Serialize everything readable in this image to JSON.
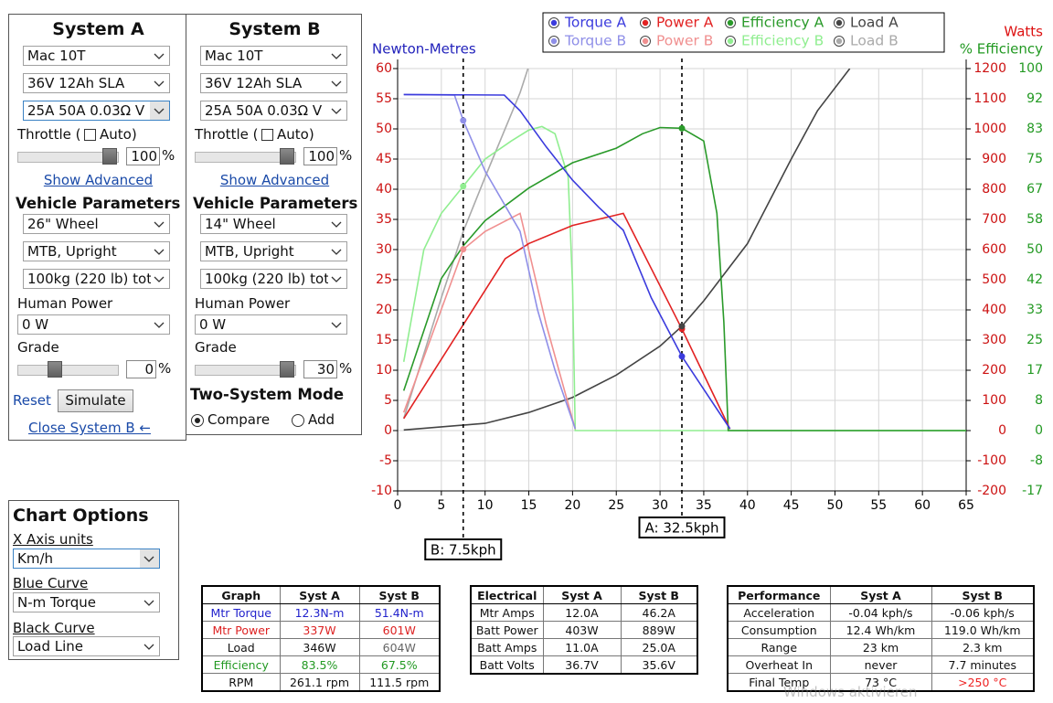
{
  "systems": [
    {
      "title": "System A",
      "motor": "Mac 10T",
      "battery": "36V 12Ah SLA",
      "controller": "25A 50A 0.03Ω V",
      "throttle_label": "Throttle (",
      "auto_label": "Auto)",
      "throttle_value": "100",
      "percent": "%",
      "show_advanced": "Show Advanced",
      "vehicle_title": "Vehicle Parameters",
      "wheel": "26\"  Wheel",
      "frame": "MTB, Upright",
      "mass": "100kg (220 lb) tot",
      "human_label": "Human Power",
      "human_value": "0 W",
      "grade_label": "Grade",
      "grade_value": "0",
      "reset": "Reset",
      "simulate": "Simulate",
      "close": "Close System B ←"
    },
    {
      "title": "System B",
      "motor": "Mac 10T",
      "battery": "36V 12Ah SLA",
      "controller": "25A 50A 0.03Ω V",
      "throttle_label": "Throttle (",
      "auto_label": "Auto)",
      "throttle_value": "100",
      "percent": "%",
      "show_advanced": "Show Advanced",
      "vehicle_title": "Vehicle Parameters",
      "wheel": "14\"  Wheel",
      "frame": "MTB, Upright",
      "mass": "100kg (220 lb) tot",
      "human_label": "Human Power",
      "human_value": "0 W",
      "grade_label": "Grade",
      "grade_value": "30",
      "mode_title": "Two-System Mode",
      "compare": "Compare",
      "add": "Add"
    }
  ],
  "chart_options": {
    "title": "Chart Options",
    "x_axis_label": "X Axis units",
    "x_axis_value": "Km/h",
    "blue_label": "Blue Curve",
    "blue_value": "N-m Torque",
    "black_label": "Black Curve",
    "black_value": "Load Line"
  },
  "chart": {
    "type": "line",
    "ylabel": "Newton-Metres",
    "y2label": "Watts",
    "y3label": "% Efficiency",
    "xlim": [
      0,
      65
    ],
    "xticks": [
      0,
      5,
      10,
      15,
      20,
      25,
      30,
      35,
      40,
      45,
      50,
      55,
      60,
      65
    ],
    "ylim": [
      -10,
      60
    ],
    "yticks": [
      -10,
      -5,
      0,
      5,
      10,
      15,
      20,
      25,
      30,
      35,
      40,
      45,
      50,
      55,
      60
    ],
    "y2lim": [
      -200,
      1200
    ],
    "y2ticks": [
      -200,
      -100,
      0,
      100,
      200,
      300,
      400,
      500,
      600,
      700,
      800,
      900,
      1000,
      1100,
      1200
    ],
    "y3lim": [
      -16.67,
      100
    ],
    "y3ticks": [
      {
        "value": -16.67,
        "label": "-17"
      },
      {
        "value": -8.33,
        "label": "-8"
      },
      0,
      {
        "value": 8.33,
        "label": "8"
      },
      {
        "value": 16.67,
        "label": "17"
      },
      25,
      {
        "value": 33.33,
        "label": "33"
      },
      {
        "value": 41.67,
        "label": "42"
      },
      50,
      {
        "value": 58.33,
        "label": "58"
      },
      {
        "value": 66.67,
        "label": "67"
      },
      75,
      {
        "value": 83.33,
        "label": "83"
      },
      {
        "value": 91.67,
        "label": "92"
      },
      100
    ],
    "grid": true,
    "series": [
      {
        "name": "Torque A",
        "color": "#3b3bdd",
        "axis": "y",
        "x": [
          0.7,
          12.2,
          14,
          17,
          20,
          23,
          25.8,
          29,
          32.5,
          38
        ],
        "values": [
          55.7,
          55.6,
          53,
          47,
          41.5,
          37,
          33.2,
          22,
          12.3,
          0.3
        ],
        "marker": {
          "x": 32.5,
          "y": 12.3
        }
      },
      {
        "name": "Power A",
        "color": "#e22222",
        "axis": "y2",
        "x": [
          0.7,
          12.3,
          15,
          20,
          25.8,
          32.5,
          38
        ],
        "values": [
          40,
          570,
          620,
          680,
          720,
          337,
          5
        ],
        "marker": {
          "x": 32.5,
          "y": 337
        }
      },
      {
        "name": "Efficiency A",
        "color": "#2a9a2a",
        "axis": "y3",
        "x": [
          0.7,
          5,
          7.5,
          10,
          15,
          20,
          25,
          28,
          30,
          32.5,
          35,
          36.5,
          37.3,
          37.8,
          65
        ],
        "values": [
          11,
          42,
          51,
          58,
          67,
          74,
          78,
          82,
          83.7,
          83.5,
          80,
          60,
          30,
          0,
          0
        ],
        "marker": {
          "x": 32.5,
          "y": 83.5
        }
      },
      {
        "name": "Load A",
        "color": "#444444",
        "axis": "y",
        "x": [
          0.7,
          10,
          15,
          20,
          25,
          30,
          32.5,
          35,
          40,
          45,
          48,
          51.7
        ],
        "values": [
          0.1,
          1.2,
          3,
          5.5,
          9.2,
          14,
          17.3,
          21.5,
          31,
          45,
          53,
          60
        ],
        "marker": {
          "x": 32.5,
          "y": 17.3
        }
      },
      {
        "name": "Torque B",
        "color": "#8f8fe8",
        "axis": "y",
        "x": [
          0.7,
          6.5,
          7.5,
          10,
          14,
          16,
          18,
          20.3
        ],
        "values": [
          55.7,
          55.6,
          51.4,
          43,
          33,
          20,
          10,
          0.3
        ],
        "marker": {
          "x": 7.5,
          "y": 51.4
        }
      },
      {
        "name": "Power B",
        "color": "#f09090",
        "axis": "y2",
        "x": [
          0.7,
          7.5,
          10,
          14,
          17,
          20.3
        ],
        "values": [
          60,
          601,
          660,
          720,
          350,
          5
        ],
        "marker": {
          "x": 7.5,
          "y": 601
        }
      },
      {
        "name": "Efficiency B",
        "color": "#90ee90",
        "axis": "y3",
        "x": [
          0.7,
          3,
          5,
          7.5,
          10,
          13,
          15,
          16.5,
          18,
          19.5,
          20,
          20.3,
          65
        ],
        "values": [
          19,
          50,
          60,
          67.5,
          75,
          80,
          83,
          84,
          82,
          70,
          40,
          0,
          0
        ],
        "marker": {
          "x": 7.5,
          "y": 67.5
        }
      },
      {
        "name": "Load B",
        "color": "#aaaaaa",
        "axis": "y",
        "x": [
          0.7,
          5,
          7.5,
          10,
          14,
          14.9
        ],
        "values": [
          2,
          22,
          33,
          42,
          56,
          60
        ]
      }
    ],
    "cursors": [
      {
        "label": "B: 7.5kph",
        "x": 7.5
      },
      {
        "label": "A: 32.5kph",
        "x": 32.5
      }
    ]
  },
  "tables": [
    {
      "header": [
        "Graph",
        "Syst A",
        "Syst B"
      ],
      "rows": [
        [
          {
            "text": "Mtr Torque",
            "color": "#2222cc"
          },
          {
            "text": "12.3N-m",
            "color": "#2222cc"
          },
          {
            "text": "51.4N-m",
            "color": "#2222cc"
          }
        ],
        [
          {
            "text": "Mtr Power",
            "color": "#dd2222"
          },
          {
            "text": "337W",
            "color": "#dd2222"
          },
          {
            "text": "601W",
            "color": "#dd2222"
          }
        ],
        [
          "Load",
          "346W",
          {
            "text": "604W",
            "color": "#666666"
          }
        ],
        [
          {
            "text": "Efficiency",
            "color": "#229922"
          },
          {
            "text": "83.5%",
            "color": "#229922"
          },
          {
            "text": "67.5%",
            "color": "#229922"
          }
        ],
        [
          "RPM",
          "261.1 rpm",
          "111.5 rpm"
        ]
      ]
    },
    {
      "header": [
        "Electrical",
        "Syst A",
        "Syst B"
      ],
      "rows": [
        [
          "Mtr Amps",
          "12.0A",
          "46.2A"
        ],
        [
          "Batt Power",
          "403W",
          "889W"
        ],
        [
          "Batt Amps",
          "11.0A",
          "25.0A"
        ],
        [
          "Batt Volts",
          "36.7V",
          "35.6V"
        ]
      ]
    },
    {
      "header": [
        "Performance",
        "Syst A",
        "Syst B"
      ],
      "rows": [
        [
          "Acceleration",
          "-0.04 kph/s",
          "-0.06 kph/s"
        ],
        [
          "Consumption",
          "12.4 Wh/km",
          "119.0 Wh/km"
        ],
        [
          "Range",
          "23 km",
          "2.3 km"
        ],
        [
          "Overheat In",
          "never",
          "7.7 minutes"
        ],
        [
          "Final Temp",
          "73 °C",
          {
            "text": ">250 °C",
            "color": "#ee2222"
          }
        ]
      ]
    }
  ],
  "watermark": "Windows aktivieren"
}
